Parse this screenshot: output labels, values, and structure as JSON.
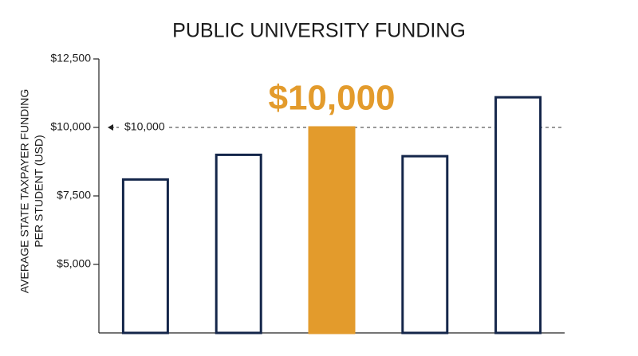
{
  "chart_data": {
    "type": "bar",
    "title": "PUBLIC UNIVERSITY FUNDING",
    "ylabel": [
      "AVERAGE STATE TAXPAYER FUNDING",
      "PER STUDENT (USD)"
    ],
    "categories": [
      null,
      null,
      null,
      null,
      null
    ],
    "values": [
      8100,
      9000,
      10000,
      8950,
      11100
    ],
    "value_labels": [
      null,
      null,
      "$10,000",
      null,
      null
    ],
    "colors": [
      "#ffffff",
      "#ffffff",
      "#e39b2c",
      "#ffffff",
      "#ffffff"
    ],
    "edgecolors": [
      "#14264a",
      "#14264a",
      "#e39b2c",
      "#14264a",
      "#14264a"
    ],
    "label_color": "#e39b2c",
    "ylim": [
      2500,
      12500
    ],
    "yticks": [
      {
        "value": 5000,
        "label": "$5,000"
      },
      {
        "value": 7500,
        "label": "$7,500"
      },
      {
        "value": 10000,
        "label": "$10,000"
      },
      {
        "value": 12500,
        "label": "$12,500"
      }
    ],
    "reference_line": {
      "value": 10000,
      "label": "$10,000"
    }
  }
}
